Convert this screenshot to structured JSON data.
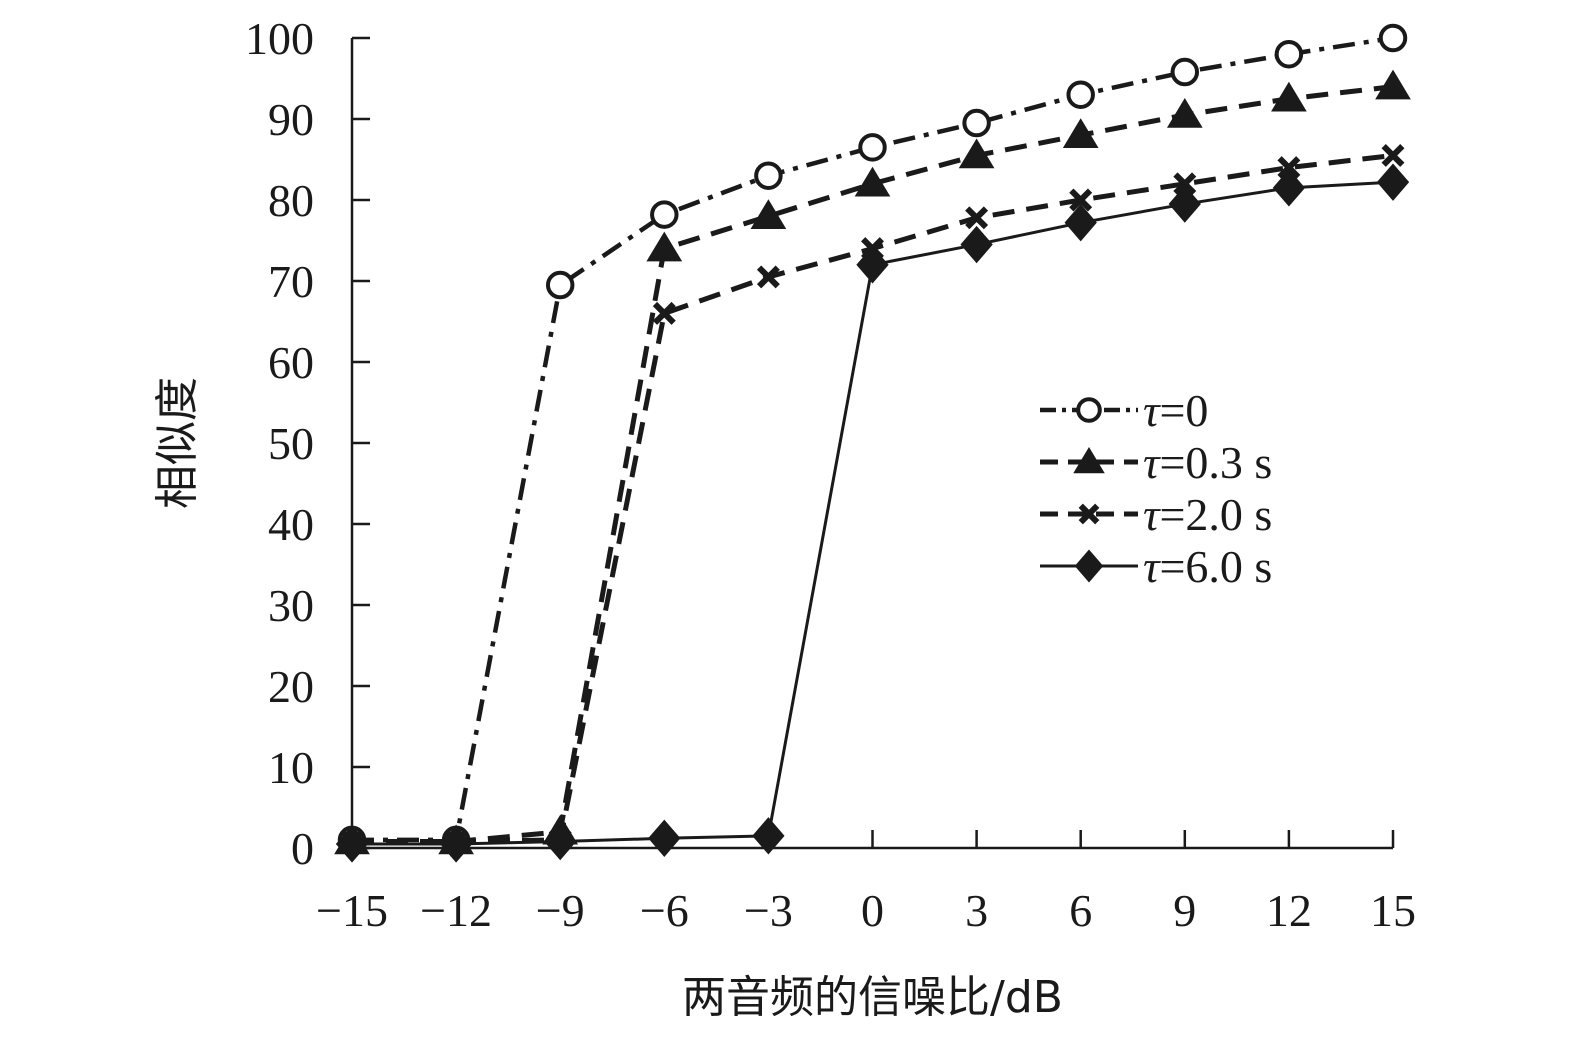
{
  "chart_data": {
    "type": "line",
    "title": "",
    "xlabel": "两音频的信噪比/dB",
    "ylabel": "相似度",
    "x": [
      -15,
      -12,
      -9,
      -6,
      -3,
      0,
      3,
      6,
      9,
      12,
      15
    ],
    "xticks": [
      "−15",
      "−12",
      "−9",
      "−6",
      "−3",
      "0",
      "3",
      "6",
      "9",
      "12",
      "15"
    ],
    "yticks": [
      "0",
      "10",
      "20",
      "30",
      "40",
      "50",
      "60",
      "70",
      "80",
      "90",
      "100"
    ],
    "xlim": [
      -15,
      15
    ],
    "ylim": [
      0,
      100
    ],
    "grid": false,
    "legend_position": "right",
    "series": [
      {
        "name": "τ=0",
        "legend_symbol": "τ",
        "legend_value": "=0",
        "marker": "circle-open",
        "line_style": "dash-dot",
        "values": [
          1.0,
          1.0,
          69.5,
          78.2,
          83.0,
          86.5,
          89.5,
          93.0,
          95.8,
          98.0,
          100.0
        ]
      },
      {
        "name": "τ=0.3 s",
        "legend_symbol": "τ",
        "legend_value": "=0.3 s",
        "marker": "triangle",
        "line_style": "dash",
        "values": [
          0.8,
          0.8,
          2.0,
          74.0,
          78.0,
          82.0,
          85.5,
          88.0,
          90.5,
          92.5,
          94.0
        ]
      },
      {
        "name": "τ=2.0 s",
        "legend_symbol": "τ",
        "legend_value": "=2.0 s",
        "marker": "x",
        "line_style": "dash",
        "values": [
          0.8,
          0.8,
          1.0,
          66.0,
          70.5,
          74.0,
          77.8,
          80.0,
          82.0,
          84.0,
          85.5
        ]
      },
      {
        "name": "τ=6.0 s",
        "legend_symbol": "τ",
        "legend_value": "=6.0 s",
        "marker": "diamond",
        "line_style": "solid",
        "values": [
          0.5,
          0.5,
          0.8,
          1.2,
          1.5,
          72.0,
          74.5,
          77.2,
          79.5,
          81.5,
          82.2
        ]
      }
    ]
  }
}
